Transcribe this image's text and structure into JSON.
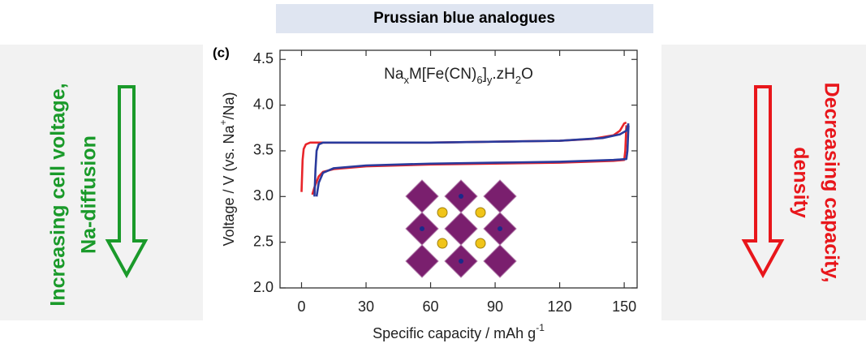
{
  "header": {
    "title": "Prussian blue analogues"
  },
  "left_note": {
    "lines": [
      "Increasing cell voltage,",
      "Na-diffusion"
    ],
    "color": "#1a9a2a"
  },
  "right_note": {
    "lines": [
      "Decreasing capacity,",
      "density"
    ],
    "color": "#e8161b"
  },
  "chart_data": {
    "type": "line",
    "panel_label": "(c)",
    "formula": [
      {
        "text": "Na"
      },
      {
        "text": "x",
        "sub": true
      },
      {
        "text": "M[Fe(CN)"
      },
      {
        "text": "6",
        "sub": true
      },
      {
        "text": "]"
      },
      {
        "text": "y",
        "sub": true
      },
      {
        "text": ".zH"
      },
      {
        "text": "2",
        "sub": true
      },
      {
        "text": "O"
      }
    ],
    "x_label": [
      {
        "text": "Specific capacity / mAh g"
      },
      {
        "text": "-1",
        "sup": true
      }
    ],
    "y_label": [
      {
        "text": "Voltage / V (vs. Na"
      },
      {
        "text": "+",
        "sup": true
      },
      {
        "text": "/Na)"
      }
    ],
    "xlim": [
      -10,
      156
    ],
    "ylim": [
      2,
      4.6
    ],
    "xticks": [
      0,
      30,
      60,
      90,
      120,
      150
    ],
    "yticks": [
      {
        "value": 2,
        "label": "2.0"
      },
      2.5,
      {
        "value": 3,
        "label": "3.0"
      },
      3.5,
      {
        "value": 4,
        "label": "4.0"
      },
      4.5
    ],
    "series": [
      {
        "color": "#e8252a",
        "x": [
          0,
          0.5,
          1,
          2,
          4,
          10,
          30,
          60,
          90,
          120,
          135,
          145,
          148,
          150,
          151
        ],
        "values": [
          3.05,
          3.4,
          3.52,
          3.57,
          3.59,
          3.59,
          3.59,
          3.59,
          3.6,
          3.61,
          3.63,
          3.67,
          3.72,
          3.8,
          3.81
        ]
      },
      {
        "color": "#e8252a",
        "x": [
          151,
          150.5,
          150,
          145,
          120,
          90,
          60,
          30,
          15,
          10,
          8,
          6,
          5
        ],
        "values": [
          3.78,
          3.5,
          3.4,
          3.39,
          3.37,
          3.36,
          3.35,
          3.33,
          3.3,
          3.27,
          3.22,
          3.1,
          3.02
        ]
      },
      {
        "color": "#2a3a9c",
        "x": [
          6,
          6.5,
          7,
          8,
          10,
          30,
          60,
          90,
          120,
          140,
          148,
          151,
          152
        ],
        "values": [
          3.0,
          3.3,
          3.5,
          3.57,
          3.59,
          3.59,
          3.59,
          3.6,
          3.61,
          3.64,
          3.68,
          3.72,
          3.8
        ]
      },
      {
        "color": "#2a3a9c",
        "x": [
          152,
          151.5,
          151,
          145,
          120,
          90,
          60,
          30,
          15,
          10,
          8,
          7
        ],
        "values": [
          3.78,
          3.5,
          3.41,
          3.4,
          3.38,
          3.37,
          3.36,
          3.34,
          3.31,
          3.26,
          3.15,
          3.0
        ]
      }
    ]
  }
}
